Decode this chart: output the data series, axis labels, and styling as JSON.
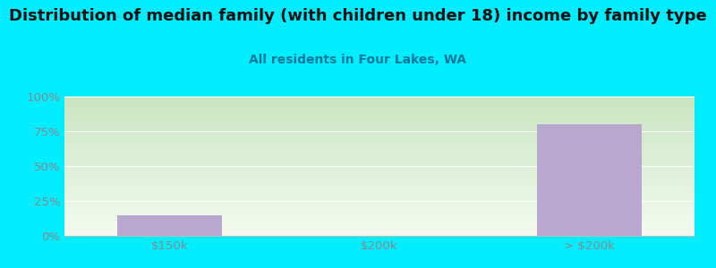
{
  "title": "Distribution of median family (with children under 18) income by family type",
  "subtitle": "All residents in Four Lakes, WA",
  "categories": [
    "$150k",
    "$200k",
    "> $200k"
  ],
  "values": [
    15.0,
    0.0,
    80.0
  ],
  "bar_color": "#b8a8d0",
  "fig_bg_color": "#00eeff",
  "chart_bg_color_topleft": "#c8e6c0",
  "chart_bg_color_bottomright": "#f4faf0",
  "title_color": "#111111",
  "subtitle_color": "#007799",
  "tick_color": "#888888",
  "grid_color": "#e0ece0",
  "ylim": [
    0,
    100
  ],
  "yticks": [
    0,
    25,
    50,
    75,
    100
  ],
  "ytick_labels": [
    "0%",
    "25%",
    "50%",
    "75%",
    "100%"
  ],
  "title_fontsize": 13,
  "subtitle_fontsize": 10,
  "tick_fontsize": 9.5,
  "bar_width": 0.5
}
